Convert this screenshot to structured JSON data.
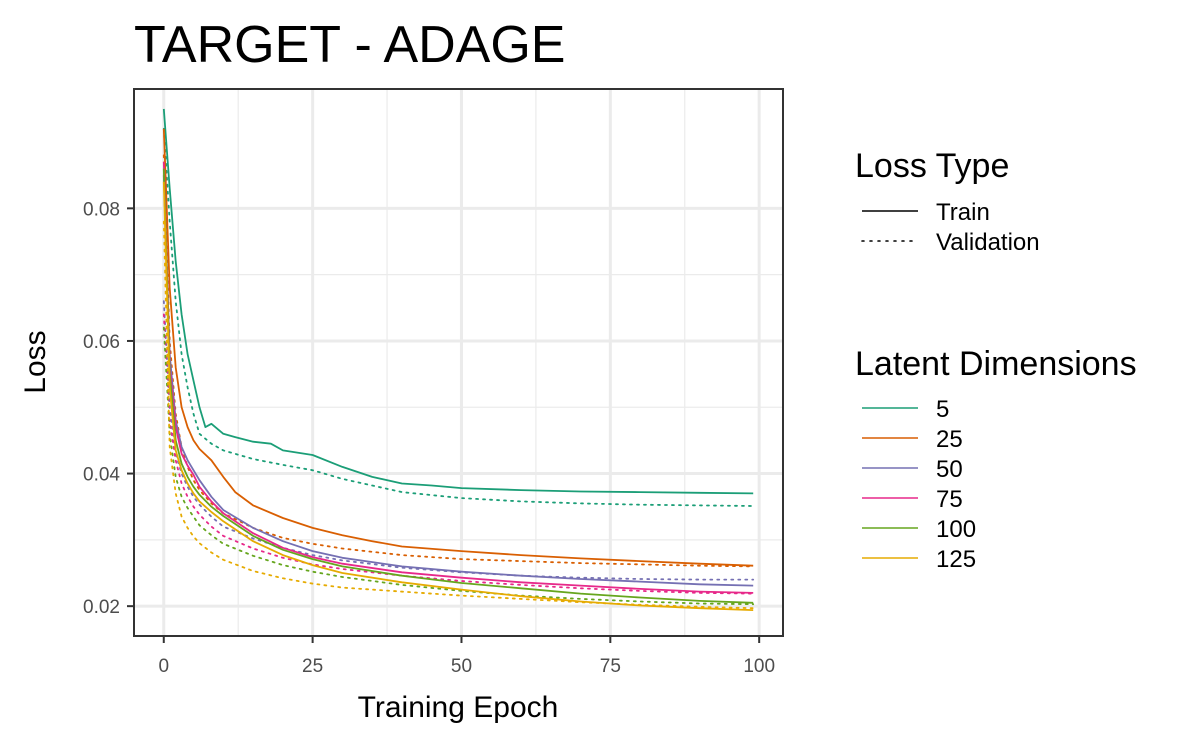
{
  "chart_data": {
    "type": "line",
    "title": "TARGET - ADAGE",
    "xlabel": "Training Epoch",
    "ylabel": "Loss",
    "xlim": [
      -5,
      104
    ],
    "ylim": [
      0.0155,
      0.098
    ],
    "x_ticks": [
      0,
      25,
      50,
      75,
      100
    ],
    "x_tick_labels": [
      "0",
      "25",
      "50",
      "75",
      "100"
    ],
    "y_ticks": [
      0.02,
      0.04,
      0.06,
      0.08
    ],
    "y_tick_labels": [
      "0.02",
      "0.04",
      "0.06",
      "0.08"
    ],
    "grid": true,
    "legend_position": "right",
    "legends": [
      {
        "title": "Loss Type",
        "entries": [
          {
            "label": "Train",
            "style": "solid"
          },
          {
            "label": "Validation",
            "style": "dotted"
          }
        ]
      },
      {
        "title": "Latent Dimensions",
        "entries": [
          {
            "label": "5",
            "color": "#1b9e77"
          },
          {
            "label": "25",
            "color": "#d95f02"
          },
          {
            "label": "50",
            "color": "#7570b3"
          },
          {
            "label": "75",
            "color": "#e7298a"
          },
          {
            "label": "100",
            "color": "#66a61e"
          },
          {
            "label": "125",
            "color": "#e6ab02"
          }
        ]
      }
    ],
    "series": [
      {
        "latent_dim": "5",
        "loss_type": "Train",
        "color": "#1b9e77",
        "style": "solid",
        "x": [
          0,
          1,
          2,
          3,
          4,
          5,
          6,
          7,
          8,
          10,
          12,
          15,
          18,
          20,
          25,
          30,
          35,
          40,
          45,
          50,
          60,
          70,
          80,
          90,
          99
        ],
        "y": [
          0.095,
          0.083,
          0.072,
          0.064,
          0.058,
          0.054,
          0.05,
          0.047,
          0.0475,
          0.046,
          0.0455,
          0.0448,
          0.0445,
          0.0435,
          0.0428,
          0.041,
          0.0395,
          0.0385,
          0.0382,
          0.0378,
          0.0375,
          0.0373,
          0.0372,
          0.0371,
          0.037
        ]
      },
      {
        "latent_dim": "5",
        "loss_type": "Validation",
        "color": "#1b9e77",
        "style": "dotted",
        "x": [
          0,
          1,
          2,
          3,
          4,
          5,
          6,
          8,
          10,
          15,
          20,
          25,
          30,
          35,
          40,
          50,
          60,
          70,
          80,
          90,
          99
        ],
        "y": [
          0.092,
          0.078,
          0.066,
          0.058,
          0.053,
          0.049,
          0.046,
          0.0445,
          0.0435,
          0.0422,
          0.0413,
          0.0405,
          0.0392,
          0.0382,
          0.0372,
          0.0363,
          0.0358,
          0.0355,
          0.0353,
          0.0352,
          0.0351
        ]
      },
      {
        "latent_dim": "25",
        "loss_type": "Train",
        "color": "#d95f02",
        "style": "solid",
        "x": [
          0,
          1,
          2,
          3,
          4,
          5,
          6,
          8,
          10,
          12,
          15,
          20,
          25,
          30,
          35,
          40,
          50,
          60,
          70,
          80,
          90,
          99
        ],
        "y": [
          0.092,
          0.068,
          0.056,
          0.05,
          0.047,
          0.045,
          0.0437,
          0.042,
          0.0395,
          0.0372,
          0.0352,
          0.0333,
          0.0318,
          0.0307,
          0.0298,
          0.029,
          0.0283,
          0.0277,
          0.0272,
          0.0268,
          0.0264,
          0.0261
        ]
      },
      {
        "latent_dim": "25",
        "loss_type": "Validation",
        "color": "#d95f02",
        "style": "dotted",
        "x": [
          0,
          1,
          2,
          3,
          4,
          5,
          6,
          8,
          10,
          15,
          20,
          25,
          30,
          40,
          50,
          60,
          70,
          80,
          90,
          99
        ],
        "y": [
          0.088,
          0.06,
          0.049,
          0.044,
          0.041,
          0.039,
          0.0375,
          0.0355,
          0.034,
          0.0318,
          0.0303,
          0.0294,
          0.0287,
          0.0277,
          0.0271,
          0.0268,
          0.0265,
          0.0263,
          0.0261,
          0.026
        ]
      },
      {
        "latent_dim": "50",
        "loss_type": "Train",
        "color": "#7570b3",
        "style": "solid",
        "x": [
          0,
          1,
          2,
          3,
          4,
          5,
          6,
          8,
          10,
          15,
          20,
          25,
          30,
          40,
          50,
          60,
          70,
          80,
          90,
          99
        ],
        "y": [
          0.085,
          0.058,
          0.048,
          0.044,
          0.042,
          0.0405,
          0.039,
          0.0365,
          0.0345,
          0.0318,
          0.0298,
          0.0283,
          0.0273,
          0.026,
          0.0252,
          0.0246,
          0.0241,
          0.0237,
          0.0233,
          0.0231
        ]
      },
      {
        "latent_dim": "50",
        "loss_type": "Validation",
        "color": "#7570b3",
        "style": "dotted",
        "x": [
          0,
          1,
          2,
          3,
          4,
          5,
          6,
          8,
          10,
          15,
          20,
          25,
          30,
          40,
          50,
          60,
          70,
          80,
          90,
          99
        ],
        "y": [
          0.066,
          0.05,
          0.043,
          0.04,
          0.038,
          0.0365,
          0.0353,
          0.0335,
          0.032,
          0.0302,
          0.0288,
          0.0277,
          0.0269,
          0.0258,
          0.0251,
          0.0246,
          0.0243,
          0.0241,
          0.024,
          0.024
        ]
      },
      {
        "latent_dim": "75",
        "loss_type": "Train",
        "color": "#e7298a",
        "style": "solid",
        "x": [
          0,
          1,
          2,
          3,
          4,
          5,
          6,
          8,
          10,
          15,
          20,
          25,
          30,
          40,
          50,
          60,
          70,
          80,
          90,
          99
        ],
        "y": [
          0.087,
          0.056,
          0.047,
          0.043,
          0.0412,
          0.0398,
          0.038,
          0.0358,
          0.034,
          0.031,
          0.0288,
          0.0274,
          0.0264,
          0.0251,
          0.0243,
          0.0236,
          0.0231,
          0.0226,
          0.0222,
          0.022
        ]
      },
      {
        "latent_dim": "75",
        "loss_type": "Validation",
        "color": "#e7298a",
        "style": "dotted",
        "x": [
          0,
          1,
          2,
          3,
          4,
          5,
          6,
          8,
          10,
          15,
          20,
          25,
          30,
          40,
          50,
          60,
          70,
          80,
          90,
          99
        ],
        "y": [
          0.064,
          0.048,
          0.042,
          0.0385,
          0.0365,
          0.035,
          0.0338,
          0.032,
          0.0306,
          0.0287,
          0.0273,
          0.0263,
          0.0256,
          0.0246,
          0.0238,
          0.0232,
          0.0227,
          0.0223,
          0.022,
          0.0219
        ]
      },
      {
        "latent_dim": "100",
        "loss_type": "Train",
        "color": "#66a61e",
        "style": "solid",
        "x": [
          0,
          1,
          2,
          3,
          4,
          5,
          6,
          8,
          10,
          15,
          20,
          25,
          30,
          40,
          50,
          60,
          70,
          80,
          90,
          99
        ],
        "y": [
          0.086,
          0.055,
          0.045,
          0.0415,
          0.0395,
          0.038,
          0.0368,
          0.035,
          0.0336,
          0.0306,
          0.0285,
          0.0271,
          0.026,
          0.0246,
          0.0235,
          0.0227,
          0.0219,
          0.0213,
          0.0208,
          0.0205
        ]
      },
      {
        "latent_dim": "100",
        "loss_type": "Validation",
        "color": "#66a61e",
        "style": "dotted",
        "x": [
          0,
          1,
          2,
          3,
          4,
          5,
          6,
          8,
          10,
          15,
          20,
          25,
          30,
          40,
          50,
          60,
          70,
          80,
          90,
          99
        ],
        "y": [
          0.062,
          0.046,
          0.0395,
          0.0365,
          0.0348,
          0.0335,
          0.0322,
          0.0307,
          0.0294,
          0.0276,
          0.0262,
          0.0252,
          0.0244,
          0.0232,
          0.0223,
          0.0216,
          0.0211,
          0.0207,
          0.0204,
          0.0203
        ]
      },
      {
        "latent_dim": "125",
        "loss_type": "Train",
        "color": "#e6ab02",
        "style": "solid",
        "x": [
          0,
          1,
          2,
          3,
          4,
          5,
          6,
          8,
          10,
          15,
          20,
          25,
          30,
          40,
          50,
          60,
          70,
          80,
          90,
          99
        ],
        "y": [
          0.084,
          0.053,
          0.0435,
          0.0405,
          0.0385,
          0.037,
          0.0358,
          0.0342,
          0.0328,
          0.0298,
          0.0277,
          0.0262,
          0.025,
          0.0236,
          0.0225,
          0.0215,
          0.0207,
          0.0201,
          0.0197,
          0.0194
        ]
      },
      {
        "latent_dim": "125",
        "loss_type": "Validation",
        "color": "#e6ab02",
        "style": "dotted",
        "x": [
          0,
          1,
          2,
          3,
          4,
          5,
          6,
          8,
          10,
          15,
          20,
          25,
          30,
          40,
          50,
          60,
          70,
          80,
          90,
          99
        ],
        "y": [
          0.078,
          0.044,
          0.037,
          0.0335,
          0.0318,
          0.0305,
          0.0295,
          0.0281,
          0.027,
          0.0253,
          0.0242,
          0.0234,
          0.0228,
          0.0222,
          0.0216,
          0.0211,
          0.0206,
          0.0202,
          0.0199,
          0.0197
        ]
      }
    ]
  }
}
